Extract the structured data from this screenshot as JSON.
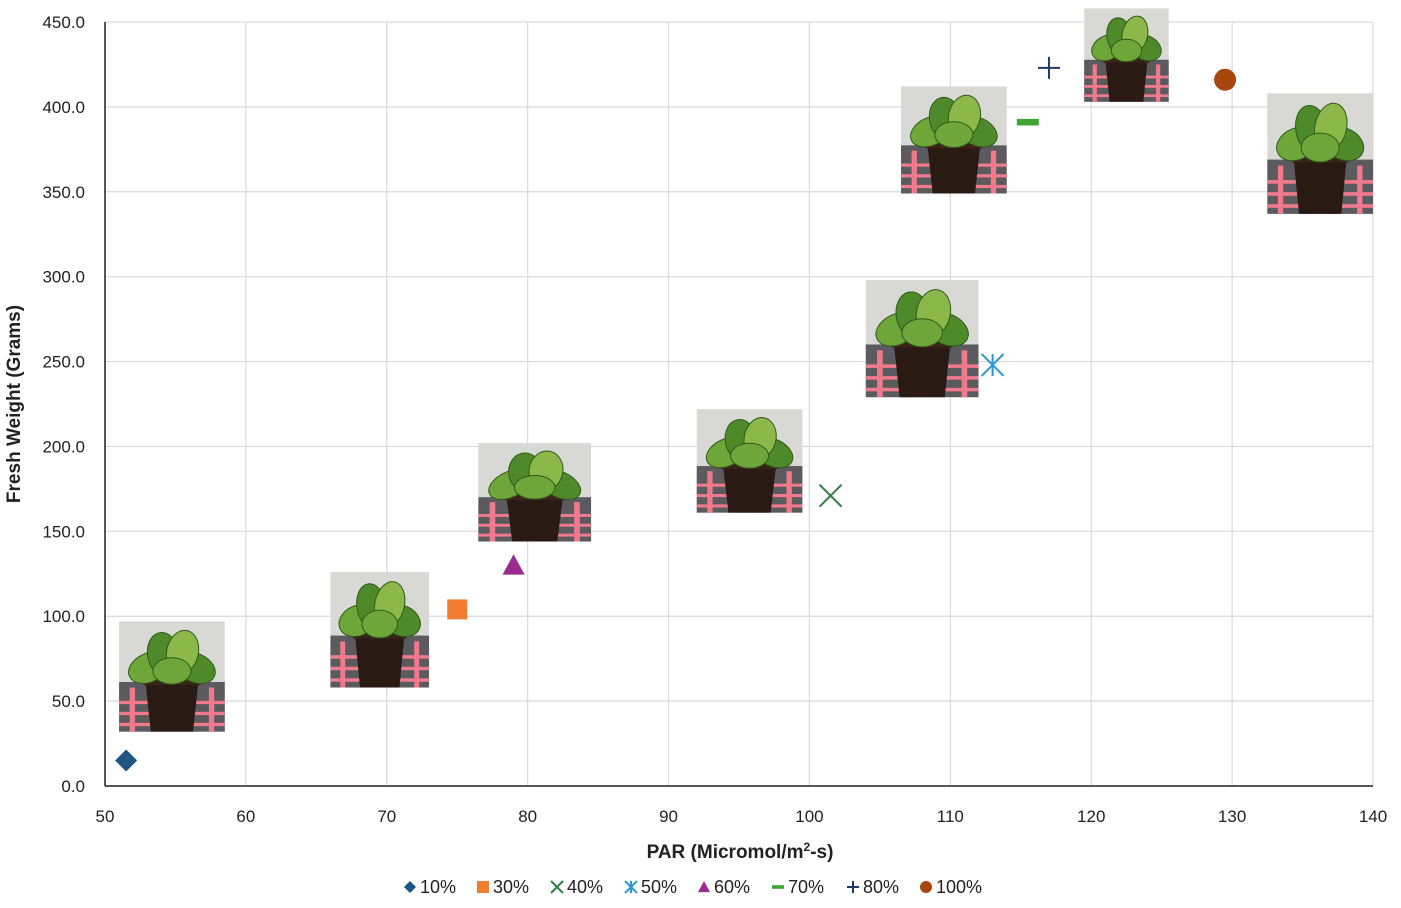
{
  "chart_data": {
    "type": "scatter",
    "title": "",
    "xlabel_main": "PAR (Micromol/m",
    "xlabel_sup": "2",
    "xlabel_tail": "-s)",
    "ylabel": "Fresh Weight (Grams)",
    "xlim": [
      50,
      140
    ],
    "ylim": [
      0,
      450
    ],
    "x_ticks": [
      "50",
      "60",
      "70",
      "80",
      "90",
      "100",
      "110",
      "120",
      "130",
      "140"
    ],
    "y_ticks": [
      "0.0",
      "50.0",
      "100.0",
      "150.0",
      "200.0",
      "250.0",
      "300.0",
      "350.0",
      "400.0",
      "450.0"
    ],
    "grid": true,
    "legend_position": "bottom",
    "series": [
      {
        "name": "10%",
        "x": 51.5,
        "y": 15,
        "marker": "diamond",
        "color": "#1f5582"
      },
      {
        "name": "30%",
        "x": 75,
        "y": 104,
        "marker": "square",
        "color": "#f07d33"
      },
      {
        "name": "40%",
        "x": 101.5,
        "y": 171,
        "marker": "x",
        "color": "#2e7d45"
      },
      {
        "name": "50%",
        "x": 113,
        "y": 248,
        "marker": "asterisk",
        "color": "#2a96d6"
      },
      {
        "name": "60%",
        "x": 79,
        "y": 130,
        "marker": "triangle",
        "color": "#9b2a8e"
      },
      {
        "name": "70%",
        "x": 115.5,
        "y": 391,
        "marker": "dash",
        "color": "#3fa535"
      },
      {
        "name": "80%",
        "x": 117,
        "y": 423,
        "marker": "plus",
        "color": "#1f3a66"
      },
      {
        "name": "100%",
        "x": 129.5,
        "y": 416,
        "marker": "circle",
        "color": "#a8460f"
      }
    ],
    "plant_photos": [
      {
        "name": "plant-photo-10",
        "x0": 51,
        "x1": 58.5,
        "y0": 32,
        "y1": 97
      },
      {
        "name": "plant-photo-30",
        "x0": 66,
        "x1": 73,
        "y0": 58,
        "y1": 126
      },
      {
        "name": "plant-photo-60",
        "x0": 76.5,
        "x1": 84.5,
        "y0": 144,
        "y1": 202
      },
      {
        "name": "plant-photo-40",
        "x0": 92,
        "x1": 99.5,
        "y0": 161,
        "y1": 222
      },
      {
        "name": "plant-photo-50",
        "x0": 104,
        "x1": 112,
        "y0": 229,
        "y1": 298
      },
      {
        "name": "plant-photo-70",
        "x0": 106.5,
        "x1": 114,
        "y0": 349,
        "y1": 412
      },
      {
        "name": "plant-photo-80",
        "x0": 119.5,
        "x1": 125.5,
        "y0": 403,
        "y1": 458
      },
      {
        "name": "plant-photo-100",
        "x0": 132.5,
        "x1": 140,
        "y0": 337,
        "y1": 408
      }
    ]
  }
}
